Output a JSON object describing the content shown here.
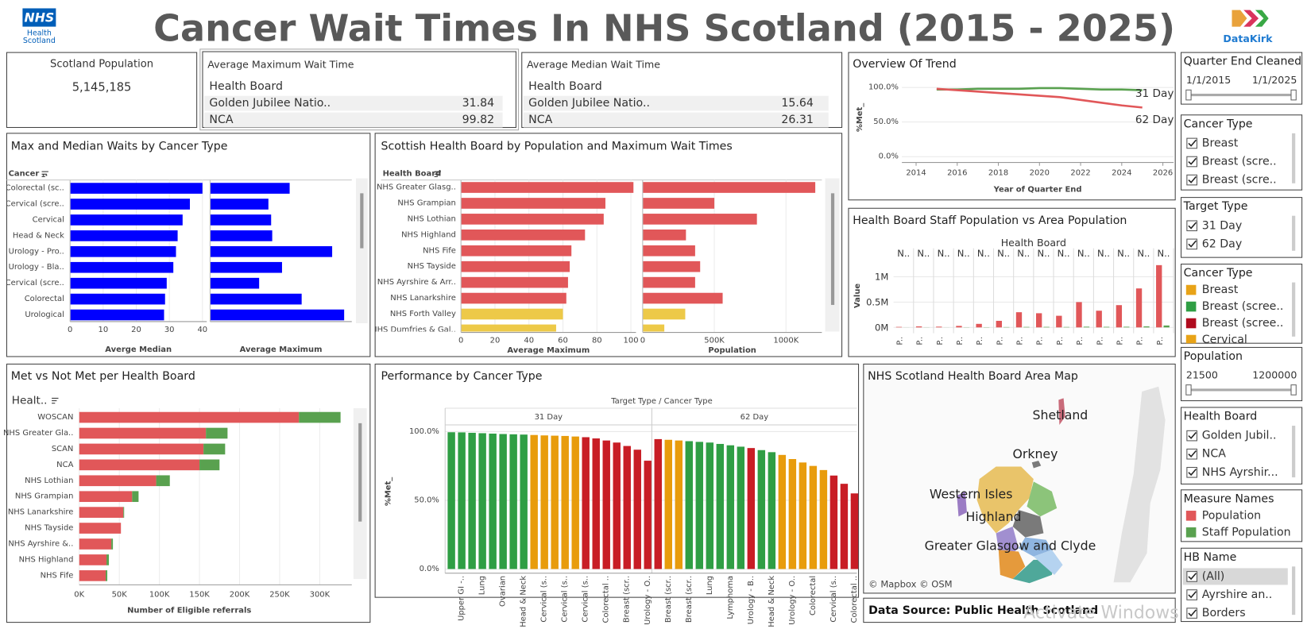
{
  "header": {
    "title": "Cancer Wait Times In NHS Scotland (2015 - 2025)",
    "logo_left": [
      "NHS",
      "Health",
      "Scotland"
    ],
    "logo_right": "DataKirk"
  },
  "kpi": {
    "title": "Scotland Population",
    "value": "5,145,185"
  },
  "tables": [
    {
      "title": "Average Maximum Wait Time",
      "header": "Health Board",
      "rows": [
        [
          "Golden Jubilee Natio..",
          31.84
        ],
        [
          "NCA",
          99.82
        ]
      ]
    },
    {
      "title": "Average Median Wait Time",
      "header": "Health Board",
      "rows": [
        [
          "Golden Jubilee Natio..",
          15.64
        ],
        [
          "NCA",
          26.31
        ]
      ]
    }
  ],
  "chart_data": [
    {
      "type": "line",
      "title": "Overview Of Trend",
      "x_label": "Year of Quarter End",
      "y_label": "%Met_",
      "x": [
        2015,
        2016,
        2017,
        2018,
        2019,
        2020,
        2021,
        2022,
        2023,
        2024,
        2025
      ],
      "series": [
        {
          "name": "31 Day",
          "color": "#59a14f",
          "values": [
            97,
            97,
            98,
            98,
            98,
            99,
            99,
            98,
            97,
            97,
            96
          ]
        },
        {
          "name": "62 Day",
          "color": "#e15759",
          "values": [
            98,
            96,
            94,
            92,
            90,
            88,
            86,
            82,
            78,
            74,
            71
          ]
        }
      ],
      "xlim": [
        2013.43,
        2026.4
      ],
      "xticks": [
        2014,
        2016,
        2018,
        2020,
        2022,
        2024,
        2026
      ],
      "ylim": [
        0,
        112
      ],
      "yticks": [
        {
          "value": 0,
          "label": "0.0%"
        },
        {
          "value": 50,
          "label": "50.0%"
        },
        {
          "value": 100,
          "label": "100.0%"
        }
      ],
      "grid": true
    },
    {
      "type": "bar",
      "title": "Max and Median Waits by Cancer Type",
      "header": "Cancer ..",
      "categories": [
        "Colorectal (sc..",
        "Cervical (scre..",
        "Cervical",
        "Head & Neck",
        "Urology - Pro..",
        "Urology - Bla..",
        "Cervical (scre..",
        "Colorectal",
        "Urological"
      ],
      "panels": [
        {
          "x_label": "Averge Median",
          "color": "#0000ff",
          "values": [
            40,
            36.2,
            34,
            32.5,
            32,
            31.2,
            29.2,
            28.7,
            28.4
          ],
          "xlim": [
            0,
            41.3
          ],
          "xticks": [
            0,
            10,
            20,
            30,
            40
          ]
        },
        {
          "x_label": "Average Maximum",
          "color": "#0000ff",
          "values": [
            73,
            53.5,
            56,
            57,
            112,
            66,
            45,
            84,
            123
          ],
          "xlim": [
            0,
            130
          ]
        }
      ]
    },
    {
      "type": "bar",
      "title": "Scottish Health Board by Population and Maximum Wait Times",
      "header": "Health Board",
      "categories": [
        "NHS Greater Glasg..",
        "NHS Grampian",
        "NHS Lothian",
        "NHS Highland",
        "NHS Fife",
        "NHS Tayside",
        "NHS Ayrshire & Arr..",
        "NHS Lanarkshire",
        "NHS Forth Valley",
        "NHS Dumfries & Gal.."
      ],
      "colors": [
        "#e15759",
        "#e15759",
        "#e15759",
        "#e15759",
        "#e15759",
        "#e15759",
        "#e15759",
        "#e15759",
        "#edc948",
        "#edc948"
      ],
      "panels": [
        {
          "x_label": "Average Maximum",
          "values": [
            101.5,
            85,
            84,
            73,
            65,
            64,
            63,
            62,
            60,
            56
          ],
          "xlim": [
            0,
            103
          ],
          "xticks": [
            0,
            20,
            40,
            60,
            80,
            100
          ]
        },
        {
          "x_label": "Population",
          "values": [
            1204000,
            500000,
            797000,
            302000,
            366000,
            401000,
            366000,
            558000,
            297000,
            151000
          ],
          "xlim": [
            0,
            1250000
          ],
          "xticks": [
            0,
            {
              "value": 500000,
              "label": "500K"
            },
            {
              "value": 1000000,
              "label": "1000K"
            }
          ]
        }
      ]
    },
    {
      "type": "bar",
      "title": "Health Board Staff Population vs Area Population",
      "header": "Health Board",
      "y_label": "Value",
      "categories": [
        "N..",
        "N..",
        "N..",
        "N..",
        "N..",
        "N..",
        "N..",
        "N..",
        "N..",
        "N..",
        "N..",
        "N..",
        "N..",
        "N.."
      ],
      "sub_labels": [
        "P..",
        "P..",
        "P..",
        "P..",
        "P..",
        "P..",
        "P..",
        "P..",
        "P..",
        "P..",
        "P..",
        "P..",
        "P..",
        "P.."
      ],
      "series": [
        {
          "name": "Population",
          "color": "#e15759",
          "values": [
            10000,
            20000,
            15000,
            30000,
            70000,
            130000,
            300000,
            280000,
            230000,
            500000,
            330000,
            440000,
            770000,
            1230000
          ]
        },
        {
          "name": "Staff Population",
          "color": "#59a14f",
          "values": [
            1000,
            2000,
            1000,
            3000,
            4000,
            6000,
            9000,
            10000,
            8000,
            14000,
            11000,
            13000,
            20000,
            38000
          ]
        }
      ],
      "ylim": [
        0,
        1300000
      ],
      "yticks": [
        {
          "value": 0,
          "label": "0M"
        },
        {
          "value": 500000,
          "label": "0.5M"
        },
        {
          "value": 1000000,
          "label": "1M"
        }
      ],
      "grid": true
    },
    {
      "type": "stacked-bar",
      "title": "Met vs Not Met per Health Board",
      "header": "Healt..",
      "x_label": "Number of Eligible referrals",
      "categories": [
        "WOSCAN",
        "NHS Greater Gla..",
        "SCAN",
        "NCA",
        "NHS Lothian",
        "NHS Grampian",
        "NHS Lanarkshire",
        "NHS Tayside",
        "NHS Ayrshire &..",
        "NHS Highland",
        "NHS Fife"
      ],
      "series": [
        {
          "color": "#e15759",
          "values": [
            274000,
            158000,
            155000,
            150000,
            96000,
            66000,
            55000,
            52000,
            40000,
            34000,
            33000
          ]
        },
        {
          "color": "#59a14f",
          "values": [
            52000,
            27000,
            27000,
            25000,
            17000,
            8000,
            1000,
            0,
            2000,
            3000,
            2000
          ]
        }
      ],
      "xlim": [
        0,
        340000
      ],
      "xticks": [
        {
          "value": 0,
          "label": "0K"
        },
        {
          "value": 50000,
          "label": "50K"
        },
        {
          "value": 100000,
          "label": "100K"
        },
        {
          "value": 150000,
          "label": "150K"
        },
        {
          "value": 200000,
          "label": "200K"
        },
        {
          "value": 250000,
          "label": "250K"
        },
        {
          "value": 300000,
          "label": "300K"
        }
      ]
    },
    {
      "type": "column",
      "title": "Performance by Cancer Type",
      "header": "Target Type / Cancer Type",
      "y_label": "%Met_",
      "ylim": [
        0,
        100
      ],
      "yticks": [
        {
          "value": 0,
          "label": "0.0%"
        },
        {
          "value": 50,
          "label": "50.0%"
        },
        {
          "value": 100,
          "label": "100.0%"
        }
      ],
      "grid": true,
      "panels": [
        {
          "name": "31 Day",
          "categories": [
            null,
            "Upper GI -..",
            null,
            "Lung",
            null,
            "Ovarian",
            null,
            "Head & Neck",
            null,
            "Cervical (s..",
            null,
            "Cervical (s..",
            null,
            "Cervical (s..",
            null,
            "Colorectal ..",
            null,
            "Breast (scr..",
            null,
            "Urology - O.."
          ],
          "values": [
            99.5,
            99.4,
            99.1,
            98.8,
            98.5,
            98.2,
            98.0,
            97.8,
            97.5,
            97.2,
            97.0,
            96.8,
            96.4,
            95.9,
            95.0,
            93.5,
            92.0,
            89.5,
            86.8,
            78.8
          ],
          "colors": [
            "#2f9e44",
            "#2f9e44",
            "#2f9e44",
            "#2f9e44",
            "#2f9e44",
            "#2f9e44",
            "#2f9e44",
            "#2f9e44",
            "#e89c0c",
            "#e89c0c",
            "#e89c0c",
            "#e89c0c",
            "#e89c0c",
            "#c81d25",
            "#c81d25",
            "#c81d25",
            "#c81d25",
            "#c81d25",
            "#c81d25",
            "#c81d25"
          ]
        },
        {
          "name": "62 Day",
          "categories": [
            null,
            "Breast (scr..",
            null,
            "Breast (scr..",
            null,
            "Lung",
            null,
            "Lymphoma",
            null,
            "Urology - B..",
            null,
            "Head & Neck",
            null,
            "Urology - O..",
            null,
            "Colorectal",
            null,
            "Cervical (s..",
            null,
            "Colorectal .."
          ],
          "values": [
            94.5,
            94.0,
            93.5,
            93.0,
            92.5,
            92.0,
            91.0,
            90.0,
            89.0,
            88.0,
            86.5,
            85.0,
            83.0,
            80.0,
            77.5,
            75.0,
            72.0,
            68.0,
            62.0,
            55.0
          ],
          "colors": [
            "#c81d25",
            "#e89c0c",
            "#e89c0c",
            "#2f9e44",
            "#2f9e44",
            "#2f9e44",
            "#2f9e44",
            "#2f9e44",
            "#2f9e44",
            "#c81d25",
            "#2f9e44",
            "#2f9e44",
            "#e89c0c",
            "#e89c0c",
            "#e89c0c",
            "#e89c0c",
            "#e89c0c",
            "#c81d25",
            "#c81d25",
            "#c81d25"
          ]
        }
      ]
    }
  ],
  "map": {
    "title": "NHS Scotland Health Board Area Map",
    "labels": [
      "Shetland",
      "Orkney",
      "Western Isles",
      "Highland",
      "Greater Glasgow and Clyde"
    ],
    "attribution": "© Mapbox © OSM"
  },
  "data_source": "Data Source: Public Health Scotland",
  "filters": [
    {
      "title": "Quarter End Cleaned",
      "range": [
        "1/1/2015",
        "1/1/2025"
      ]
    },
    {
      "title": "Cancer Type",
      "items": [
        "Breast",
        "Breast (scre..",
        "Breast (scre.."
      ]
    },
    {
      "title": "Target Type",
      "items": [
        "31 Day",
        "62 Day"
      ]
    },
    {
      "title": "Cancer Type",
      "legend": [
        {
          "label": "Breast",
          "color": "#e8a317"
        },
        {
          "label": "Breast (scree..",
          "color": "#2f9e44"
        },
        {
          "label": "Breast (scree..",
          "color": "#b00b1e"
        },
        {
          "label": "Cervical",
          "color": "#e8a317"
        }
      ]
    },
    {
      "title": "Population",
      "range": [
        21500,
        1200000
      ]
    },
    {
      "title": "Health Board",
      "items": [
        "Golden Jubil..",
        "NCA",
        "NHS Ayrshir..."
      ]
    },
    {
      "title": "Measure Names"
    },
    {
      "title": "HB Name",
      "items": [
        "(All)",
        "Ayrshire an..",
        "Borders"
      ]
    }
  ],
  "watermark": "Activate Windows"
}
